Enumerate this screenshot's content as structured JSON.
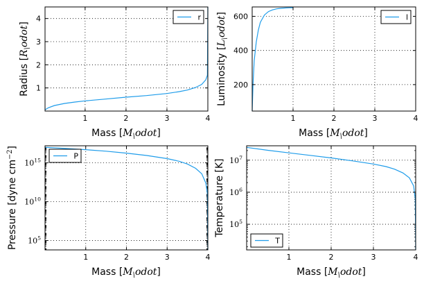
{
  "chart_data": [
    {
      "id": "radius",
      "type": "line",
      "xlabel": "Mass [$M_\\odot$]",
      "ylabel": "Radius [$R_\\odot$]",
      "xlim": [
        0.02,
        4.0
      ],
      "ylim": [
        0.0,
        4.5
      ],
      "yscale": "linear",
      "xticks": [
        1,
        2,
        3,
        4
      ],
      "yticks": [
        1,
        2,
        3,
        4
      ],
      "yticklabels": [
        "1",
        "2",
        "3",
        "4"
      ],
      "grid": true,
      "legend_position": "top-right",
      "series": [
        {
          "name": "r",
          "color": "#1e9cea",
          "x": [
            0.02,
            0.1,
            0.25,
            0.5,
            0.75,
            1.0,
            1.5,
            2.0,
            2.5,
            3.0,
            3.3,
            3.5,
            3.7,
            3.85,
            3.95,
            3.99,
            4.0
          ],
          "y": [
            0.05,
            0.14,
            0.24,
            0.33,
            0.39,
            0.44,
            0.52,
            0.6,
            0.67,
            0.76,
            0.84,
            0.91,
            1.02,
            1.15,
            1.35,
            1.55,
            4.5
          ]
        }
      ]
    },
    {
      "id": "luminosity",
      "type": "line",
      "xlabel": "Mass [$M_\\odot$]",
      "ylabel": "Luminosity [$L_\\odot$]",
      "xlim": [
        0.0,
        4.0
      ],
      "ylim": [
        45,
        655
      ],
      "yscale": "linear",
      "xticks": [
        1,
        2,
        3,
        4
      ],
      "yticks": [
        200,
        400,
        600
      ],
      "yticklabels": [
        "200",
        "400",
        "600"
      ],
      "grid": true,
      "legend_position": "top-right",
      "series": [
        {
          "name": "l",
          "color": "#1e9cea",
          "x": [
            0.0,
            0.02,
            0.05,
            0.1,
            0.15,
            0.2,
            0.3,
            0.4,
            0.5,
            0.6,
            0.7,
            0.8,
            0.9,
            1.0
          ],
          "y": [
            45,
            200,
            340,
            450,
            520,
            565,
            608,
            628,
            638,
            644,
            647,
            649,
            650,
            651
          ]
        }
      ]
    },
    {
      "id": "pressure",
      "type": "line",
      "xlabel": "Mass [$M_\\odot$]",
      "ylabel": "Pressure [dyne cm$^{-2}$]",
      "xlim": [
        0.0,
        4.0
      ],
      "ylim": [
        3.8,
        17.2
      ],
      "yscale": "log",
      "xticks": [
        1,
        2,
        3,
        4
      ],
      "yticks": [
        5,
        10,
        15
      ],
      "yticklabels": [
        "$10^{5}$",
        "$10^{10}$",
        "$10^{15}$"
      ],
      "grid": true,
      "legend_position": "top-left",
      "series": [
        {
          "name": "P",
          "color": "#1e9cea",
          "x": [
            0.0,
            0.5,
            1.0,
            1.5,
            2.0,
            2.5,
            3.0,
            3.3,
            3.5,
            3.7,
            3.85,
            3.95,
            3.99,
            4.0
          ],
          "y": [
            17.0,
            16.85,
            16.7,
            16.5,
            16.25,
            15.95,
            15.55,
            15.2,
            14.85,
            14.3,
            13.6,
            12.4,
            11.0,
            3.8
          ]
        }
      ]
    },
    {
      "id": "temperature",
      "type": "line",
      "xlabel": "Mass [$M_\\odot$]",
      "ylabel": "Temperature [K]",
      "xlim": [
        0.0,
        4.0
      ],
      "ylim": [
        4.2,
        7.45
      ],
      "yscale": "log",
      "xticks": [
        1,
        2,
        3,
        4
      ],
      "yticks": [
        5,
        6,
        7
      ],
      "yticklabels": [
        "$10^{5}$",
        "$10^{6}$",
        "$10^{7}$"
      ],
      "grid": true,
      "legend_position": "bottom-left",
      "series": [
        {
          "name": "T",
          "color": "#1e9cea",
          "x": [
            0.0,
            0.5,
            1.0,
            1.5,
            2.0,
            2.5,
            3.0,
            3.3,
            3.5,
            3.7,
            3.85,
            3.95,
            3.99,
            4.0
          ],
          "y": [
            7.4,
            7.31,
            7.23,
            7.15,
            7.07,
            6.98,
            6.88,
            6.8,
            6.72,
            6.6,
            6.45,
            6.2,
            5.8,
            4.2
          ]
        }
      ]
    }
  ]
}
